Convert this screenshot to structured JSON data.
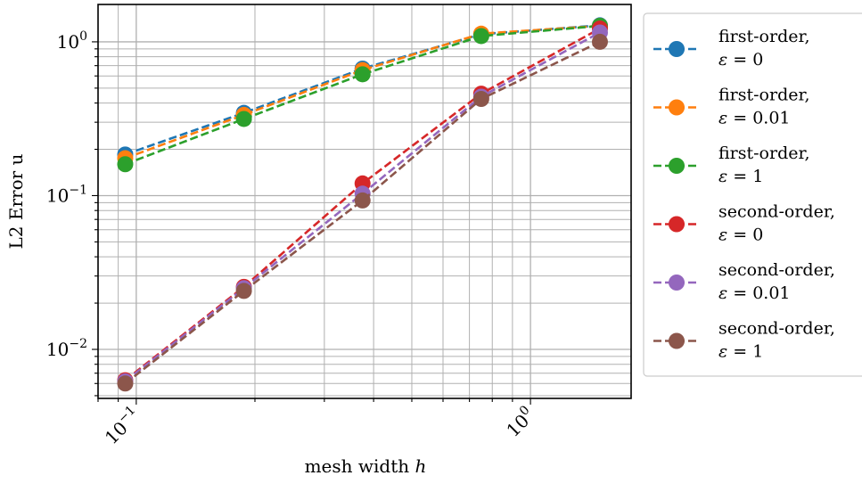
{
  "chart_data": {
    "type": "line",
    "title": "",
    "xlabel": "mesh width h",
    "ylabel": "L2 Error u",
    "x_scale": "log",
    "y_scale": "log",
    "xlim": [
      0.08,
      1.8
    ],
    "ylim": [
      0.0048,
      1.75
    ],
    "grid": true,
    "grid_minor": true,
    "legend_position": "outside-right",
    "x_tick_labels": [
      {
        "value": 0.1,
        "base": "10",
        "exp": "−1"
      },
      {
        "value": 1.0,
        "base": "10",
        "exp": "0"
      }
    ],
    "y_tick_labels": [
      {
        "value": 0.01,
        "base": "10",
        "exp": "−2"
      },
      {
        "value": 0.1,
        "base": "10",
        "exp": "−1"
      },
      {
        "value": 1.0,
        "base": "10",
        "exp": "0"
      }
    ],
    "x": [
      0.09375,
      0.1875,
      0.375,
      0.75,
      1.5
    ],
    "series": [
      {
        "name": "first-order,",
        "name_line2": "ε = 0",
        "color": "#1f77b4",
        "values": [
          0.185,
          0.345,
          0.67,
          1.12,
          1.28
        ]
      },
      {
        "name": "first-order,",
        "name_line2": "ε = 0.01",
        "color": "#ff7f0e",
        "values": [
          0.175,
          0.335,
          0.655,
          1.13,
          1.27
        ]
      },
      {
        "name": "first-order,",
        "name_line2": "ε = 1",
        "color": "#2ca02c",
        "values": [
          0.16,
          0.315,
          0.615,
          1.09,
          1.27
        ]
      },
      {
        "name": "second-order,",
        "name_line2": "ε = 0",
        "color": "#d62728",
        "values": [
          0.0063,
          0.0255,
          0.12,
          0.46,
          1.22
        ]
      },
      {
        "name": "second-order,",
        "name_line2": "ε = 0.01",
        "color": "#9467bd",
        "values": [
          0.0062,
          0.025,
          0.103,
          0.44,
          1.15
        ]
      },
      {
        "name": "second-order,",
        "name_line2": "ε = 1",
        "color": "#8c564b",
        "values": [
          0.006,
          0.024,
          0.093,
          0.425,
          1.0
        ]
      }
    ]
  }
}
